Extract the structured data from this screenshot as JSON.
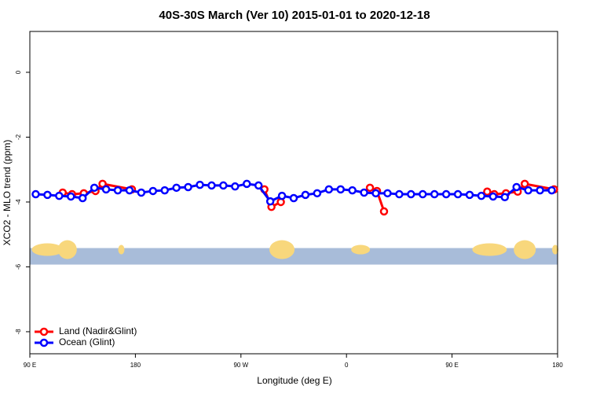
{
  "chart_data": {
    "type": "line",
    "title": "40S-30S March (Ver 10)   2015-01-01 to 2020-12-18",
    "x_label": "Longitude (deg E)",
    "y_label": "XCO2 - MLO trend (ppm)",
    "xlim": [
      90,
      540
    ],
    "ylim": [
      -8.68,
      1.26
    ],
    "xticks": [
      {
        "value": 90,
        "label": "90 E"
      },
      180,
      {
        "value": 270,
        "label": "90 W"
      },
      {
        "value": 360,
        "label": "0"
      },
      {
        "value": 450,
        "label": "90 E"
      },
      {
        "value": 540,
        "label": "180"
      }
    ],
    "yticks": [
      0,
      -2,
      -4,
      -6,
      -8
    ],
    "legend": "bottom-left",
    "series": [
      {
        "name": "Land (Nadir&Glint)",
        "color": "#ff0000",
        "x": [
          118,
          126,
          136,
          146,
          152,
          177,
          null,
          290,
          296,
          304,
          null,
          380,
          386,
          392,
          null,
          480,
          486,
          496,
          506,
          512,
          537
        ],
        "values": [
          -3.71,
          -3.76,
          -3.73,
          -3.66,
          -3.44,
          -3.61,
          null,
          -3.61,
          -4.15,
          -4.0,
          null,
          -3.56,
          -3.66,
          -4.29,
          null,
          -3.68,
          -3.76,
          -3.73,
          -3.68,
          -3.44,
          -3.61
        ]
      },
      {
        "name": "Ocean (Glint)",
        "color": "#0000ff",
        "x": [
          95,
          105,
          115,
          125,
          135,
          145,
          155,
          165,
          175,
          185,
          195,
          205,
          215,
          225,
          235,
          245,
          255,
          265,
          275,
          285,
          295,
          305,
          315,
          325,
          335,
          345,
          355,
          365,
          375,
          385,
          395,
          405,
          415,
          425,
          435,
          445,
          455,
          465,
          475,
          485,
          495,
          505,
          515,
          525,
          535
        ],
        "values": [
          -3.76,
          -3.78,
          -3.81,
          -3.83,
          -3.88,
          -3.56,
          -3.61,
          -3.64,
          -3.64,
          -3.71,
          -3.66,
          -3.64,
          -3.56,
          -3.54,
          -3.47,
          -3.49,
          -3.49,
          -3.52,
          -3.44,
          -3.49,
          -3.98,
          -3.81,
          -3.88,
          -3.78,
          -3.73,
          -3.61,
          -3.61,
          -3.64,
          -3.71,
          -3.73,
          -3.73,
          -3.76,
          -3.76,
          -3.76,
          -3.76,
          -3.76,
          -3.76,
          -3.78,
          -3.81,
          -3.83,
          -3.85,
          -3.54,
          -3.64,
          -3.64,
          -3.64
        ]
      }
    ]
  }
}
